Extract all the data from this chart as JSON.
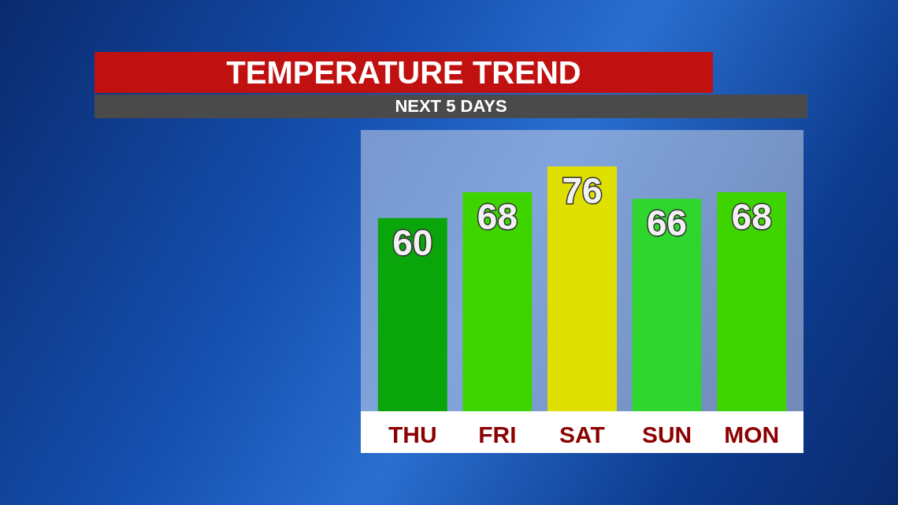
{
  "chart_data": {
    "type": "bar",
    "title": "TEMPERATURE TREND",
    "subtitle": "NEXT 5 DAYS",
    "categories": [
      "THU",
      "FRI",
      "SAT",
      "SUN",
      "MON"
    ],
    "values": [
      60,
      68,
      76,
      66,
      68
    ],
    "colors": [
      "#0aa50a",
      "#3dd400",
      "#e0e000",
      "#2ed62e",
      "#3dd400"
    ],
    "data_labels": true
  }
}
